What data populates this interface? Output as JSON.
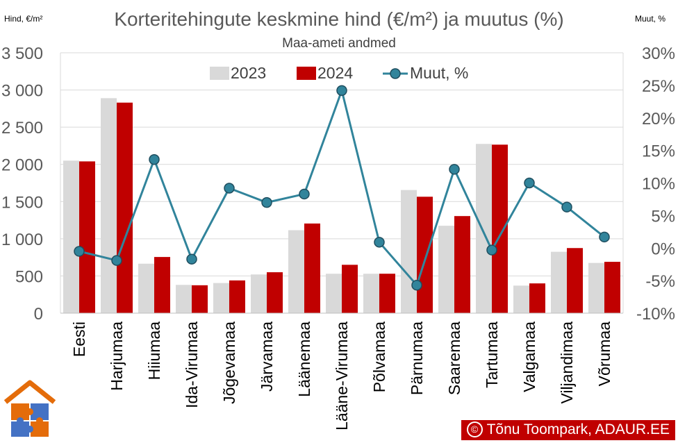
{
  "chart_data": {
    "type": "bar",
    "title": "Korteritehingute keskmine hind (€/m²) ja muutus (%)",
    "subtitle": "Maa-ameti andmed",
    "ylabel": "Hind, €/m²",
    "y2label": "Muut, %",
    "ylim": [
      0,
      3500
    ],
    "y2lim": [
      -10,
      30
    ],
    "yticks": [
      "0",
      "500",
      "1 000",
      "1 500",
      "2 000",
      "2 500",
      "3 000",
      "3 500"
    ],
    "y2ticks": [
      "-10%",
      "-5%",
      "0%",
      "5%",
      "10%",
      "15%",
      "20%",
      "25%",
      "30%"
    ],
    "categories": [
      "Eesti",
      "Harjumaa",
      "Hiiumaa",
      "Ida-Virumaa",
      "Jõgevamaa",
      "Järvamaa",
      "Läänemaa",
      "Lääne-Virumaa",
      "Põlvamaa",
      "Pärnumaa",
      "Saaremaa",
      "Tartumaa",
      "Valgamaa",
      "Viljandimaa",
      "Võrumaa"
    ],
    "series": [
      {
        "name": "2023",
        "type": "bar",
        "axis": "left",
        "color": "#d9d9d9",
        "values": [
          2050,
          2890,
          665,
          380,
          405,
          520,
          1115,
          530,
          530,
          1655,
          1175,
          2275,
          370,
          825,
          675
        ]
      },
      {
        "name": "2024",
        "type": "bar",
        "axis": "left",
        "color": "#c00000",
        "values": [
          2040,
          2830,
          755,
          375,
          440,
          550,
          1205,
          650,
          530,
          1565,
          1305,
          2265,
          400,
          875,
          690
        ]
      },
      {
        "name": "Muut, %",
        "type": "line",
        "axis": "right",
        "color": "#31849b",
        "values": [
          -0.5,
          -1.9,
          13.6,
          -1.7,
          9.2,
          7.0,
          8.3,
          24.2,
          0.9,
          -5.7,
          12.1,
          -0.3,
          10.0,
          6.3,
          1.7
        ]
      }
    ],
    "legend": "top-center"
  },
  "credit": "Tõnu Toompark, ADAUR.EE",
  "credit_symbol": "©"
}
